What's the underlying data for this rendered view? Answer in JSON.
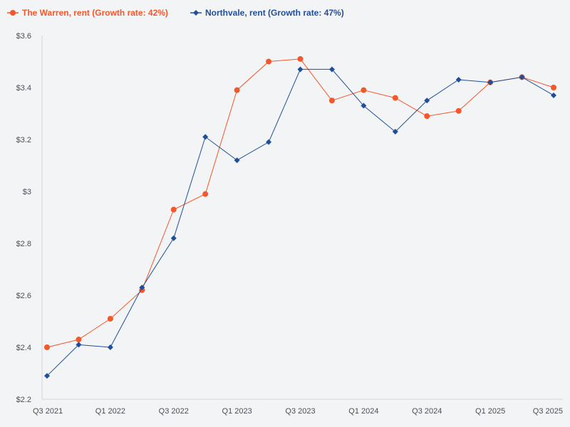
{
  "chart_data": {
    "type": "line",
    "title": "",
    "xlabel": "",
    "ylabel": "",
    "categories": [
      "Q3 2021",
      "Q4 2021",
      "Q1 2022",
      "Q2 2022",
      "Q3 2022",
      "Q4 2022",
      "Q1 2023",
      "Q2 2023",
      "Q3 2023",
      "Q4 2023",
      "Q1 2024",
      "Q2 2024",
      "Q3 2024",
      "Q4 2024",
      "Q1 2025",
      "Q2 2025",
      "Q3 2025"
    ],
    "x_tick_labels": [
      "Q3 2021",
      "Q1 2022",
      "Q3 2022",
      "Q1 2023",
      "Q3 2023",
      "Q1 2024",
      "Q3 2024",
      "Q1 2025",
      "Q3 2025"
    ],
    "ylim": [
      2.2,
      3.6
    ],
    "y_ticks": [
      2.2,
      2.4,
      2.6,
      2.8,
      3.0,
      3.2,
      3.4,
      3.6
    ],
    "y_tick_labels": [
      "$2.2",
      "$2.4",
      "$2.6",
      "$2.8",
      "$3",
      "$3.2",
      "$3.4",
      "$3.6"
    ],
    "legend_position": "top-left",
    "series": [
      {
        "name": "The Warren, rent (Growth rate: 42%)",
        "color": "#f4572a",
        "marker": "circle",
        "values": [
          2.4,
          2.43,
          2.51,
          2.62,
          2.93,
          2.99,
          3.39,
          3.5,
          3.51,
          3.35,
          3.39,
          3.36,
          3.29,
          3.31,
          3.42,
          3.44,
          3.4
        ]
      },
      {
        "name": "Northvale, rent (Growth rate: 47%)",
        "color": "#1f4e9b",
        "marker": "diamond",
        "values": [
          2.29,
          2.41,
          2.4,
          2.63,
          2.82,
          3.21,
          3.12,
          3.19,
          3.47,
          3.47,
          3.33,
          3.23,
          3.35,
          3.43,
          3.42,
          3.44,
          3.37
        ]
      }
    ]
  }
}
